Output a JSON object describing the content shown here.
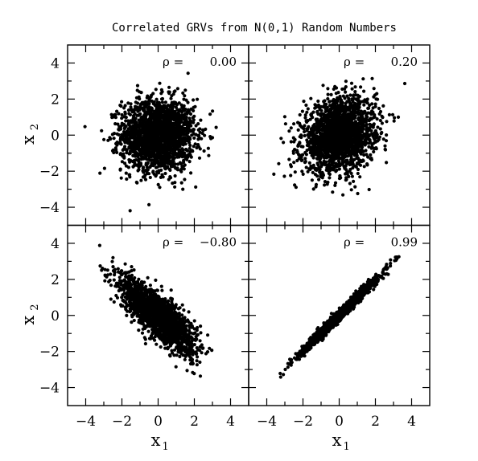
{
  "chart_data": {
    "type": "scatter",
    "title": "Correlated GRVs from N(0,1) Random Numbers",
    "xlabel": "x",
    "xlabel_sub": "1",
    "ylabel": "x",
    "ylabel_sub": "2",
    "xlim": [
      -5,
      5
    ],
    "ylim": [
      -5,
      5
    ],
    "x_ticks": [
      "−4",
      "−2",
      "0",
      "2",
      "4"
    ],
    "y_ticks": [
      "−4",
      "−2",
      "0",
      "2",
      "4"
    ],
    "rho_symbol": "ρ =",
    "marker_color": "#000000",
    "point_count": 2000,
    "panels": [
      {
        "rho_label": "0.00",
        "rho": 0.0
      },
      {
        "rho_label": "0.20",
        "rho": 0.2
      },
      {
        "rho_label": "−0.80",
        "rho": -0.8
      },
      {
        "rho_label": "0.99",
        "rho": 0.99
      }
    ]
  }
}
